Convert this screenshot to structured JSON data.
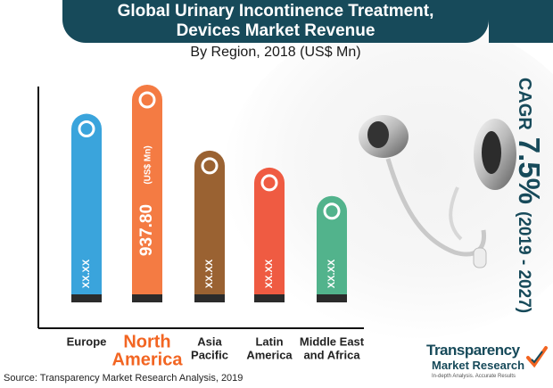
{
  "title": {
    "line1": "Global Urinary Incontinence Treatment,",
    "line2": "Devices Market Revenue",
    "subtitle": "By Region, 2018 (US$ Mn)"
  },
  "cagr": {
    "label": "CAGR",
    "value": "7.5%",
    "range": "(2019 - 2027)"
  },
  "source": "Source: Transparency Market Research Analysis, 2019",
  "logo": {
    "line1": "Transparency",
    "line2": "Market Research",
    "tagline": "In-depth Analysis. Accurate Results"
  },
  "colors": {
    "title_bg": "#174a5a",
    "highlight_label": "#f26522"
  },
  "chart_data": {
    "type": "bar",
    "categories": [
      "Europe",
      "North America",
      "Asia Pacific",
      "Latin America",
      "Middle East and Africa"
    ],
    "category_lines": [
      [
        "Europe"
      ],
      [
        "North",
        "America"
      ],
      [
        "Asia",
        "Pacific"
      ],
      [
        "Latin",
        "America"
      ],
      [
        "Middle East",
        "and Africa"
      ]
    ],
    "values": [
      808,
      937.8,
      643,
      567,
      440
    ],
    "value_labels": [
      "XX.XX",
      "937.80",
      "XX.XX",
      "XX.XX",
      "XX.XX"
    ],
    "unit_label": "(US$ Mn)",
    "highlight_index": 1,
    "colors": [
      "#3aa4dc",
      "#f47b43",
      "#9a6232",
      "#ef5b42",
      "#52b38c"
    ],
    "grid": false,
    "legend": "none"
  }
}
